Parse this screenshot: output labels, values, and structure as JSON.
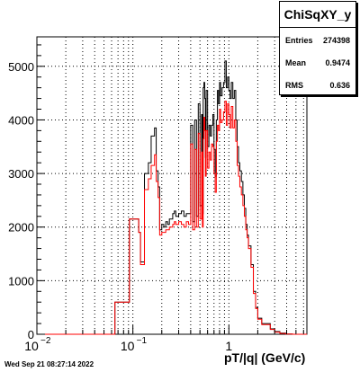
{
  "chart_data": {
    "type": "histogram",
    "title": "",
    "xlabel": "pT/|q| (GeV/c)",
    "ylabel": "",
    "x_scale": "log",
    "xlim": [
      0.01,
      6.5
    ],
    "ylim": [
      0,
      5550
    ],
    "grid": true,
    "y_ticks": [
      0,
      1000,
      2000,
      3000,
      4000,
      5000
    ],
    "y_tick_labels": [
      "0",
      "1000",
      "2000",
      "3000",
      "4000",
      "5000"
    ],
    "x_tick_labels": [
      {
        "base": "10",
        "exp": "−2",
        "value": 0.01
      },
      {
        "base": "10",
        "exp": "−1",
        "value": 0.1
      },
      {
        "base": "1",
        "exp": "",
        "value": 1
      }
    ],
    "series": [
      {
        "color": "#000000",
        "edges": [
          0.01,
          0.065,
          0.092,
          0.105,
          0.115,
          0.12,
          0.132,
          0.145,
          0.155,
          0.168,
          0.175,
          0.183,
          0.19,
          0.2,
          0.21,
          0.22,
          0.23,
          0.24,
          0.25,
          0.26,
          0.27,
          0.28,
          0.3,
          0.32,
          0.34,
          0.36,
          0.38,
          0.4,
          0.42,
          0.44,
          0.46,
          0.48,
          0.5,
          0.52,
          0.53,
          0.54,
          0.55,
          0.56,
          0.57,
          0.58,
          0.6,
          0.62,
          0.64,
          0.66,
          0.68,
          0.7,
          0.72,
          0.74,
          0.76,
          0.78,
          0.8,
          0.82,
          0.85,
          0.88,
          0.91,
          0.94,
          0.97,
          1.0,
          1.03,
          1.06,
          1.1,
          1.14,
          1.18,
          1.22,
          1.26,
          1.3,
          1.35,
          1.4,
          1.45,
          1.5,
          1.55,
          1.6,
          1.7,
          1.8,
          1.9,
          2.0,
          2.2,
          2.4,
          2.7,
          3.0,
          3.4,
          3.9,
          4.6,
          5.5,
          6.5
        ],
        "values": [
          0,
          600,
          2150,
          2150,
          1900,
          1350,
          3000,
          3200,
          3700,
          3850,
          3050,
          2750,
          1950,
          2050,
          2000,
          2100,
          2050,
          2150,
          2150,
          2250,
          2300,
          2200,
          2250,
          2300,
          2200,
          2250,
          2250,
          3900,
          2100,
          4000,
          2200,
          4300,
          2400,
          4100,
          2250,
          4600,
          4700,
          4400,
          3300,
          4550,
          3500,
          3900,
          3700,
          3900,
          4100,
          3450,
          2950,
          4000,
          4550,
          4300,
          4700,
          4450,
          4600,
          4700,
          5100,
          4600,
          4800,
          4550,
          4400,
          4700,
          4400,
          4550,
          4000,
          3500,
          3200,
          3050,
          2850,
          2600,
          2350,
          2050,
          1850,
          1650,
          1300,
          800,
          500,
          300,
          200,
          200,
          100,
          50,
          20,
          5,
          0,
          0
        ]
      },
      {
        "color": "#ff0000",
        "edges": [
          0.01,
          0.065,
          0.092,
          0.105,
          0.115,
          0.12,
          0.132,
          0.145,
          0.155,
          0.168,
          0.175,
          0.183,
          0.19,
          0.2,
          0.21,
          0.22,
          0.23,
          0.24,
          0.25,
          0.26,
          0.27,
          0.28,
          0.3,
          0.32,
          0.34,
          0.36,
          0.38,
          0.4,
          0.42,
          0.44,
          0.46,
          0.48,
          0.5,
          0.52,
          0.53,
          0.54,
          0.55,
          0.56,
          0.57,
          0.58,
          0.6,
          0.62,
          0.64,
          0.66,
          0.68,
          0.7,
          0.72,
          0.74,
          0.76,
          0.78,
          0.8,
          0.82,
          0.85,
          0.88,
          0.91,
          0.94,
          0.97,
          1.0,
          1.03,
          1.06,
          1.1,
          1.14,
          1.18,
          1.22,
          1.26,
          1.3,
          1.35,
          1.4,
          1.45,
          1.5,
          1.55,
          1.6,
          1.7,
          1.8,
          1.9,
          2.0,
          2.2,
          2.4,
          2.7,
          3.0,
          3.4,
          3.9,
          4.6,
          5.5,
          6.5
        ],
        "values": [
          0,
          600,
          2150,
          2150,
          1900,
          1300,
          2700,
          2900,
          3150,
          3350,
          2850,
          2550,
          1850,
          1900,
          1900,
          1950,
          1950,
          2000,
          2000,
          2050,
          2100,
          2050,
          2100,
          2050,
          2000,
          2100,
          2050,
          3550,
          1950,
          3450,
          2000,
          3750,
          2150,
          3400,
          2000,
          3650,
          4050,
          3800,
          2950,
          3800,
          3100,
          3400,
          3250,
          3550,
          3500,
          3000,
          2650,
          3600,
          3900,
          3800,
          4200,
          3950,
          4000,
          4150,
          4350,
          3900,
          4300,
          4100,
          3850,
          4250,
          3850,
          4000,
          3600,
          3150,
          2950,
          2750,
          2600,
          2400,
          2200,
          1950,
          1800,
          1600,
          1250,
          760,
          480,
          280,
          180,
          180,
          90,
          40,
          15,
          5,
          0,
          0
        ]
      }
    ]
  },
  "stats": {
    "title": "ChiSqXY_y",
    "rows": [
      {
        "label": "Entries",
        "value": "274398"
      },
      {
        "label": "Mean",
        "value": "0.9474"
      },
      {
        "label": "RMS",
        "value": "0.636"
      }
    ]
  },
  "footer": {
    "date": "Wed Sep 21 08:27:14 2022"
  }
}
